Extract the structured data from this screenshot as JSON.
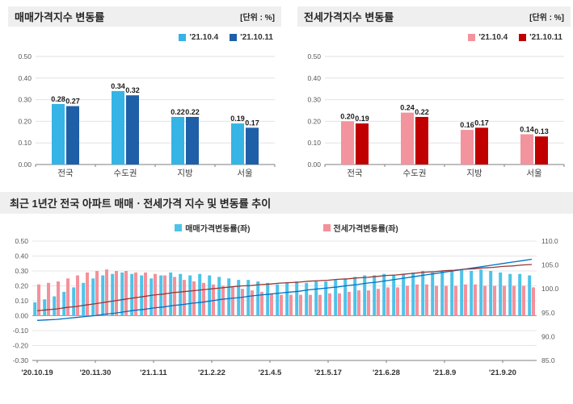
{
  "chart_data": [
    {
      "id": "sales-bar",
      "type": "bar",
      "title": "매매가격지수 변동률",
      "unit_label": "[단위 : %]",
      "categories": [
        "전국",
        "수도권",
        "지방",
        "서울"
      ],
      "series": [
        {
          "name": "'21.10.4",
          "color": "#35B4E5",
          "values": [
            0.28,
            0.34,
            0.22,
            0.19
          ]
        },
        {
          "name": "'21.10.11",
          "color": "#1F5FA8",
          "values": [
            0.27,
            0.32,
            0.22,
            0.17
          ]
        }
      ],
      "ylim": [
        0,
        0.5
      ],
      "ytick_step": 0.1,
      "grid": true,
      "legend_position": "top-right"
    },
    {
      "id": "jeonse-bar",
      "type": "bar",
      "title": "전세가격지수 변동률",
      "unit_label": "[단위 : %]",
      "categories": [
        "전국",
        "수도권",
        "지방",
        "서울"
      ],
      "series": [
        {
          "name": "'21.10.4",
          "color": "#F2939D",
          "values": [
            0.2,
            0.24,
            0.16,
            0.14
          ]
        },
        {
          "name": "'21.10.11",
          "color": "#C00000",
          "values": [
            0.19,
            0.22,
            0.17,
            0.13
          ]
        }
      ],
      "ylim": [
        0,
        0.5
      ],
      "ytick_step": 0.1,
      "grid": true,
      "legend_position": "top-right"
    },
    {
      "id": "trend-combo",
      "type": "bar+line",
      "title": "최근 1년간 전국 아파트 매매ㆍ전세가격 지수 및 변동률 추이",
      "x_tick_labels": [
        "'20.10.19",
        "'20.11.30",
        "'21.1.11",
        "'21.2.22",
        "'21.4.5",
        "'21.5.17",
        "'21.6.28",
        "'21.8.9",
        "'21.9.20"
      ],
      "x_tick_every": 6,
      "ylim_left": [
        -0.3,
        0.5
      ],
      "ytick_step_left": 0.1,
      "ylim_right": [
        85,
        110
      ],
      "ytick_step_right": 5,
      "bar_series": [
        {
          "name": "매매가격변동률(좌)",
          "color": "#4FC3E9",
          "axis": "left",
          "values": [
            0.09,
            0.11,
            0.13,
            0.16,
            0.19,
            0.22,
            0.25,
            0.27,
            0.28,
            0.29,
            0.28,
            0.27,
            0.25,
            0.27,
            0.29,
            0.28,
            0.27,
            0.28,
            0.27,
            0.26,
            0.25,
            0.24,
            0.24,
            0.23,
            0.22,
            0.21,
            0.22,
            0.23,
            0.22,
            0.23,
            0.23,
            0.24,
            0.25,
            0.26,
            0.27,
            0.27,
            0.28,
            0.27,
            0.28,
            0.29,
            0.3,
            0.29,
            0.3,
            0.3,
            0.31,
            0.3,
            0.31,
            0.3,
            0.29,
            0.28,
            0.28,
            0.27
          ]
        },
        {
          "name": "전세가격변동률(좌)",
          "color": "#F4919B",
          "axis": "left",
          "values": [
            0.21,
            0.22,
            0.23,
            0.25,
            0.27,
            0.29,
            0.3,
            0.31,
            0.3,
            0.3,
            0.29,
            0.29,
            0.28,
            0.27,
            0.26,
            0.24,
            0.23,
            0.22,
            0.21,
            0.2,
            0.19,
            0.18,
            0.17,
            0.16,
            0.15,
            0.14,
            0.14,
            0.14,
            0.14,
            0.14,
            0.15,
            0.15,
            0.16,
            0.17,
            0.17,
            0.18,
            0.19,
            0.19,
            0.2,
            0.21,
            0.21,
            0.2,
            0.2,
            0.2,
            0.21,
            0.21,
            0.2,
            0.2,
            0.2,
            0.2,
            0.2,
            0.19
          ]
        }
      ],
      "line_series": [
        {
          "name": "매매가격지수(우)",
          "color": "#0070C0",
          "axis": "right",
          "values": [
            93.4,
            93.5,
            93.6,
            93.8,
            94.0,
            94.2,
            94.4,
            94.7,
            94.9,
            95.2,
            95.5,
            95.7,
            96.0,
            96.2,
            96.5,
            96.7,
            97.0,
            97.2,
            97.5,
            97.8,
            98.0,
            98.2,
            98.5,
            98.7,
            98.9,
            99.1,
            99.3,
            99.5,
            99.8,
            100.0,
            100.2,
            100.4,
            100.7,
            100.9,
            101.2,
            101.4,
            101.7,
            102.0,
            102.3,
            102.6,
            102.9,
            103.2,
            103.5,
            103.8,
            104.1,
            104.4,
            104.7,
            105.0,
            105.3,
            105.6,
            105.9,
            106.2
          ]
        },
        {
          "name": "전세가격지수(우)",
          "color": "#953735",
          "axis": "right",
          "values": [
            95.4,
            95.6,
            95.8,
            96.1,
            96.3,
            96.6,
            96.9,
            97.2,
            97.5,
            97.8,
            98.1,
            98.4,
            98.7,
            98.9,
            99.2,
            99.4,
            99.6,
            99.8,
            100.0,
            100.2,
            100.4,
            100.6,
            100.7,
            100.9,
            101.0,
            101.2,
            101.3,
            101.4,
            101.6,
            101.7,
            101.8,
            102.0,
            102.1,
            102.3,
            102.4,
            102.6,
            102.8,
            102.9,
            103.1,
            103.3,
            103.5,
            103.6,
            103.8,
            103.9,
            104.1,
            104.2,
            104.4,
            104.5,
            104.7,
            104.8,
            105.0,
            105.1
          ]
        }
      ],
      "legend": [
        "매매가격변동률(좌)",
        "전세가격변동률(좌)"
      ]
    }
  ]
}
